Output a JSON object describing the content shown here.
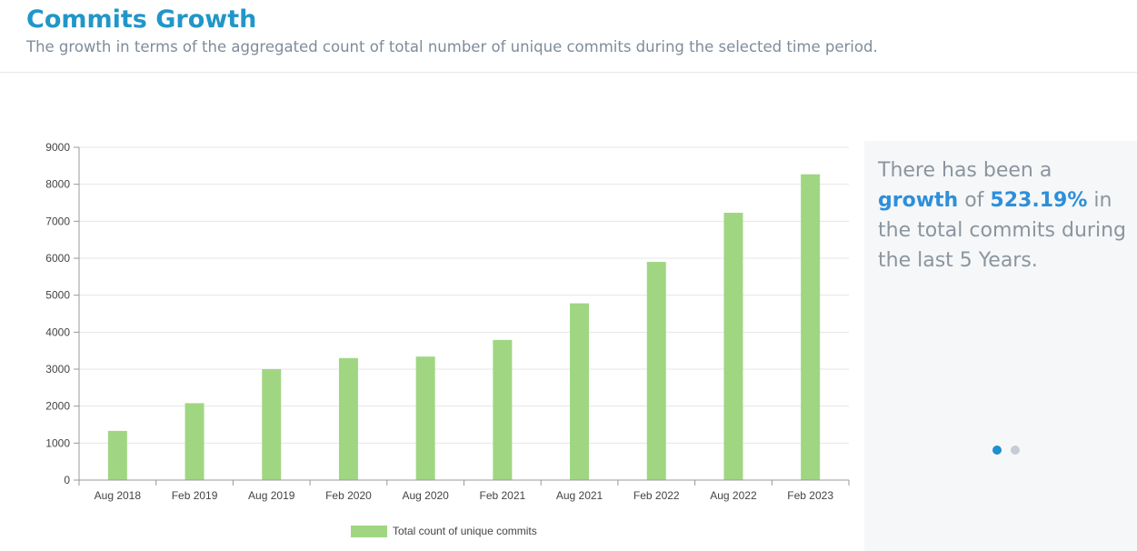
{
  "header": {
    "title": "Commits Growth",
    "subtitle": "The growth in terms of the aggregated count of total number of unique commits during the selected time period."
  },
  "chart_data": {
    "type": "bar",
    "title": "",
    "xlabel": "",
    "ylabel": "",
    "ylim": [
      0,
      9000
    ],
    "yticks": [
      "0",
      "1000",
      "2000",
      "3000",
      "4000",
      "5000",
      "6000",
      "7000",
      "8000",
      "9000"
    ],
    "categories": [
      "Aug 2018",
      "Feb 2019",
      "Aug 2019",
      "Feb 2020",
      "Aug 2020",
      "Feb 2021",
      "Aug 2021",
      "Feb 2022",
      "Aug 2022",
      "Feb 2023"
    ],
    "series": [
      {
        "name": "Total count of unique commits",
        "values": [
          1330,
          2080,
          3000,
          3300,
          3340,
          3790,
          4780,
          5900,
          7230,
          8270
        ],
        "color": "#a0d682"
      }
    ],
    "grid": true,
    "legend": "bottom"
  },
  "insight": {
    "before": "There has been a ",
    "highlight_word": "growth",
    "middle": " of ",
    "highlight_value": "523.19%",
    "after": " in the total commits during the last 5 Years."
  },
  "carousel": {
    "active_color": "#1e8fcf",
    "inactive_color": "#c5ccd3"
  }
}
